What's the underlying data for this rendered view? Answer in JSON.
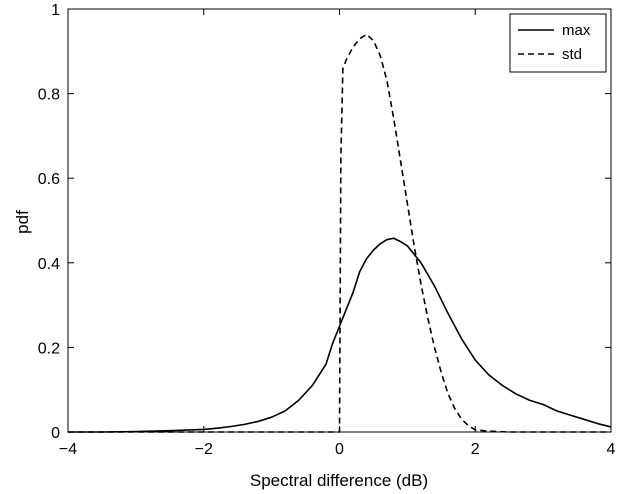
{
  "chart_data": {
    "type": "line",
    "title": "",
    "xlabel": "Spectral difference (dB)",
    "ylabel": "pdf",
    "xlim": [
      -4,
      4
    ],
    "ylim": [
      0,
      1
    ],
    "xticks": [
      -4,
      -2,
      0,
      2,
      4
    ],
    "xtick_labels": [
      "−4",
      "−2",
      "0",
      "2",
      "4"
    ],
    "yticks": [
      0,
      0.2,
      0.4,
      0.6,
      0.8,
      1
    ],
    "ytick_labels": [
      "0",
      "0.2",
      "0.4",
      "0.6",
      "0.8",
      "1"
    ],
    "grid": false,
    "legend": {
      "placement": "top-right"
    },
    "series": [
      {
        "name": "max",
        "style": "solid",
        "color": "#000000",
        "x": [
          -4.0,
          -3.5,
          -3.0,
          -2.5,
          -2.0,
          -1.8,
          -1.6,
          -1.4,
          -1.2,
          -1.0,
          -0.8,
          -0.6,
          -0.4,
          -0.2,
          -0.1,
          0.0,
          0.1,
          0.2,
          0.3,
          0.4,
          0.5,
          0.6,
          0.7,
          0.8,
          0.9,
          1.0,
          1.2,
          1.4,
          1.6,
          1.8,
          2.0,
          2.2,
          2.4,
          2.6,
          2.8,
          3.0,
          3.2,
          3.4,
          3.6,
          3.8,
          4.0
        ],
        "values": [
          0.0,
          0.0,
          0.001,
          0.003,
          0.006,
          0.009,
          0.013,
          0.018,
          0.025,
          0.035,
          0.05,
          0.075,
          0.11,
          0.16,
          0.21,
          0.25,
          0.29,
          0.33,
          0.38,
          0.41,
          0.43,
          0.445,
          0.455,
          0.458,
          0.45,
          0.44,
          0.4,
          0.345,
          0.28,
          0.22,
          0.17,
          0.135,
          0.11,
          0.09,
          0.075,
          0.065,
          0.05,
          0.04,
          0.03,
          0.02,
          0.012
        ]
      },
      {
        "name": "std",
        "style": "dashed",
        "color": "#000000",
        "x": [
          -4.0,
          -3.0,
          -2.0,
          -1.0,
          -0.5,
          0.0,
          0.02,
          0.05,
          0.1,
          0.2,
          0.3,
          0.4,
          0.5,
          0.6,
          0.7,
          0.8,
          0.9,
          1.0,
          1.1,
          1.2,
          1.3,
          1.4,
          1.5,
          1.6,
          1.7,
          1.8,
          1.9,
          2.0,
          2.2,
          2.5,
          3.0,
          4.0
        ],
        "values": [
          0.0,
          0.0,
          0.0,
          0.0,
          0.0,
          0.0,
          0.65,
          0.86,
          0.88,
          0.91,
          0.93,
          0.94,
          0.925,
          0.89,
          0.83,
          0.74,
          0.64,
          0.54,
          0.44,
          0.35,
          0.27,
          0.2,
          0.14,
          0.09,
          0.055,
          0.03,
          0.015,
          0.005,
          0.002,
          0.0,
          0.0,
          0.0
        ]
      }
    ]
  }
}
